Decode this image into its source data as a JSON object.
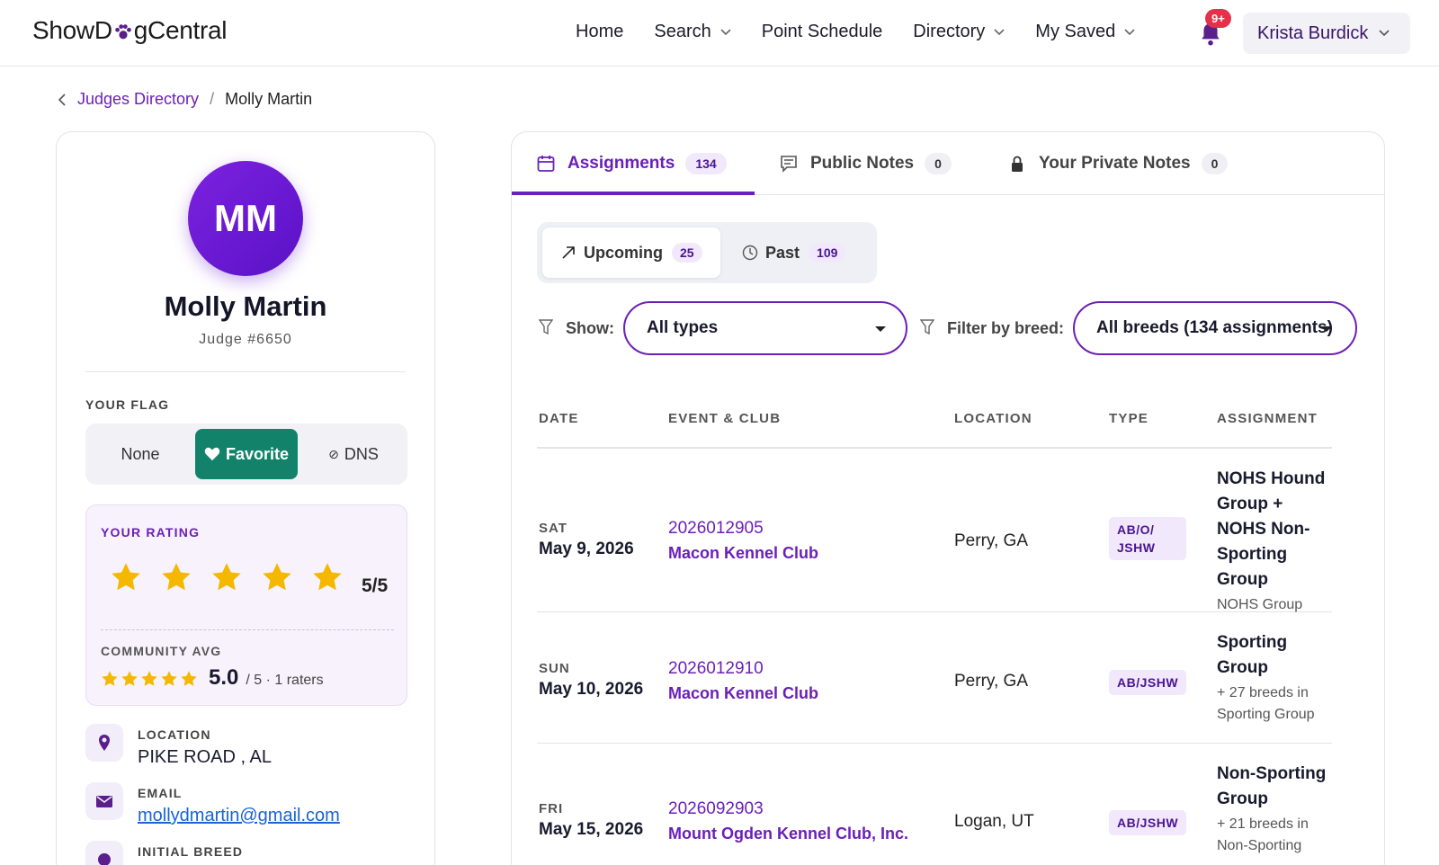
{
  "header": {
    "logo_left": "ShowD",
    "logo_right": "gCentral",
    "nav": [
      {
        "label": "Home",
        "dropdown": false
      },
      {
        "label": "Search",
        "dropdown": true
      },
      {
        "label": "Point Schedule",
        "dropdown": false
      },
      {
        "label": "Directory",
        "dropdown": true
      },
      {
        "label": "My Saved",
        "dropdown": true
      }
    ],
    "notifications_badge": "9+",
    "user_name": "Krista Burdick"
  },
  "breadcrumb": {
    "parent": "Judges Directory",
    "separator": "/",
    "current": "Molly Martin"
  },
  "profile": {
    "initials": "MM",
    "name": "Molly Martin",
    "judge_number": "Judge #6650",
    "flag_label": "YOUR FLAG",
    "flag_options": {
      "none": "None",
      "favorite": "Favorite",
      "dns": "DNS"
    },
    "flag_selected": "Favorite",
    "rating_label": "YOUR RATING",
    "rating_value": 5,
    "rating_text": "5/5",
    "community_label": "COMMUNITY AVG",
    "community_score": "5.0",
    "community_meta": "/ 5 · 1 raters",
    "location_label": "LOCATION",
    "location_value": "PIKE ROAD , AL",
    "email_label": "EMAIL",
    "email_value": "mollydmartin@gmail.com",
    "initial_breed_label": "INITIAL BREED"
  },
  "tabs": [
    {
      "label": "Assignments",
      "count": "134",
      "icon": "calendar-icon",
      "active": true
    },
    {
      "label": "Public Notes",
      "count": "0",
      "icon": "comment-icon",
      "active": false
    },
    {
      "label": "Your Private Notes",
      "count": "0",
      "icon": "lock-icon",
      "active": false
    }
  ],
  "segments": {
    "upcoming_label": "Upcoming",
    "upcoming_count": "25",
    "past_label": "Past",
    "past_count": "109"
  },
  "filters": {
    "show_label": "Show:",
    "show_value": "All types",
    "breed_label": "Filter by breed:",
    "breed_value": "All breeds (134 assignments)"
  },
  "table": {
    "headers": {
      "date": "DATE",
      "event": "EVENT & CLUB",
      "location": "LOCATION",
      "type": "TYPE",
      "assignment": "ASSIGNMENT"
    },
    "rows": [
      {
        "dow": "SAT",
        "date": "May 9, 2026",
        "event_id": "2026012905",
        "club": "Macon Kennel Club",
        "location": "Perry, GA",
        "type_line1": "AB/O/",
        "type_line2": "JSHW",
        "assignment": [
          "NOHS Hound",
          "Group +",
          "NOHS Non-",
          "Sporting",
          "Group"
        ],
        "sub": [
          "NOHS Group"
        ]
      },
      {
        "dow": "SUN",
        "date": "May 10, 2026",
        "event_id": "2026012910",
        "club": "Macon Kennel Club",
        "location": "Perry, GA",
        "type_line1": "AB/JSHW",
        "type_line2": "",
        "assignment": [
          "Sporting",
          "Group"
        ],
        "sub": [
          "+ 27 breeds in",
          "Sporting Group"
        ]
      },
      {
        "dow": "FRI",
        "date": "May 15, 2026",
        "event_id": "2026092903",
        "club": "Mount Ogden Kennel Club, Inc.",
        "location": "Logan, UT",
        "type_line1": "AB/JSHW",
        "type_line2": "",
        "assignment": [
          "Non-Sporting",
          "Group"
        ],
        "sub": [
          "+ 21 breeds in",
          "Non-Sporting"
        ]
      }
    ]
  },
  "colors": {
    "accent": "#6b1fb8",
    "favorite": "#12836a",
    "star": "#f5b800",
    "badge": "#e5304a"
  }
}
